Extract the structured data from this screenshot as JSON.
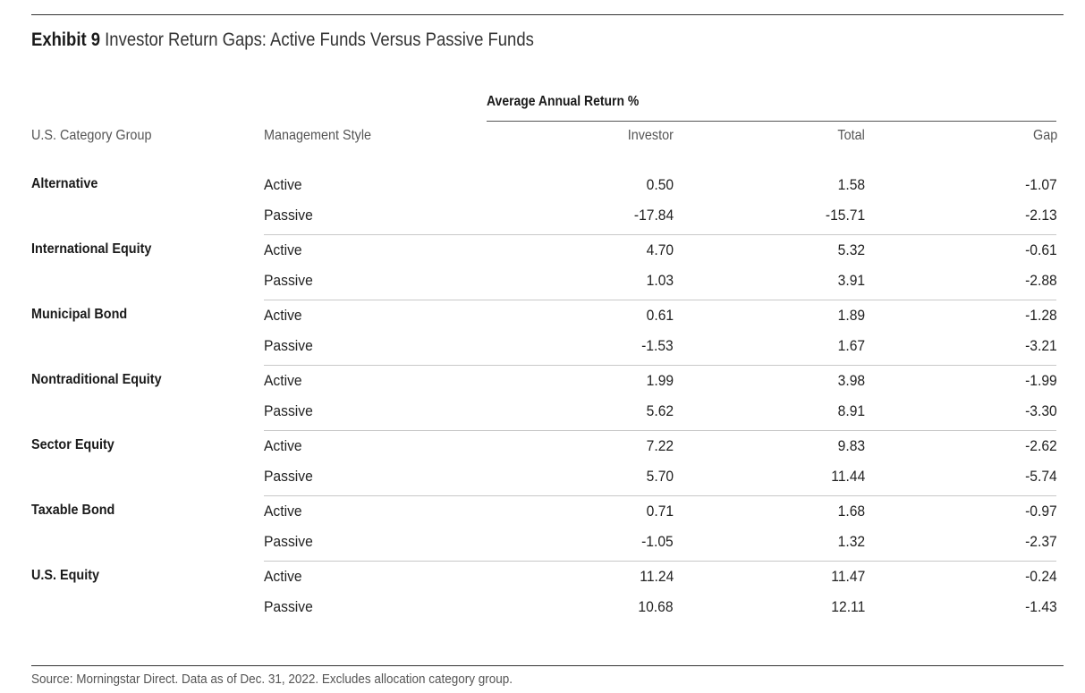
{
  "exhibit": {
    "label": "Exhibit 9",
    "title": "Investor Return Gaps: Active Funds Versus Passive Funds"
  },
  "table": {
    "group_header": "Average Annual Return %",
    "columns": {
      "category": "U.S. Category Group",
      "style": "Management Style",
      "investor": "Investor",
      "total": "Total",
      "gap": "Gap"
    }
  },
  "chart_data": {
    "type": "table",
    "title": "Investor Return Gaps: Active Funds Versus Passive Funds",
    "columns": [
      "U.S. Category Group",
      "Management Style",
      "Investor",
      "Total",
      "Gap"
    ],
    "groups": [
      {
        "category": "Alternative",
        "rows": [
          {
            "style": "Active",
            "investor": "0.50",
            "total": "1.58",
            "gap": "-1.07"
          },
          {
            "style": "Passive",
            "investor": "-17.84",
            "total": "-15.71",
            "gap": "-2.13"
          }
        ]
      },
      {
        "category": "International Equity",
        "rows": [
          {
            "style": "Active",
            "investor": "4.70",
            "total": "5.32",
            "gap": "-0.61"
          },
          {
            "style": "Passive",
            "investor": "1.03",
            "total": "3.91",
            "gap": "-2.88"
          }
        ]
      },
      {
        "category": "Municipal Bond",
        "rows": [
          {
            "style": "Active",
            "investor": "0.61",
            "total": "1.89",
            "gap": "-1.28"
          },
          {
            "style": "Passive",
            "investor": "-1.53",
            "total": "1.67",
            "gap": "-3.21"
          }
        ]
      },
      {
        "category": "Nontraditional Equity",
        "rows": [
          {
            "style": "Active",
            "investor": "1.99",
            "total": "3.98",
            "gap": "-1.99"
          },
          {
            "style": "Passive",
            "investor": "5.62",
            "total": "8.91",
            "gap": "-3.30"
          }
        ]
      },
      {
        "category": "Sector Equity",
        "rows": [
          {
            "style": "Active",
            "investor": "7.22",
            "total": "9.83",
            "gap": "-2.62"
          },
          {
            "style": "Passive",
            "investor": "5.70",
            "total": "11.44",
            "gap": "-5.74"
          }
        ]
      },
      {
        "category": "Taxable Bond",
        "rows": [
          {
            "style": "Active",
            "investor": "0.71",
            "total": "1.68",
            "gap": "-0.97"
          },
          {
            "style": "Passive",
            "investor": "-1.05",
            "total": "1.32",
            "gap": "-2.37"
          }
        ]
      },
      {
        "category": "U.S. Equity",
        "rows": [
          {
            "style": "Active",
            "investor": "11.24",
            "total": "11.47",
            "gap": "-0.24"
          },
          {
            "style": "Passive",
            "investor": "10.68",
            "total": "12.11",
            "gap": "-1.43"
          }
        ]
      }
    ]
  },
  "footer": {
    "source": "Source: Morningstar Direct. Data as of Dec. 31, 2022. Excludes allocation category group."
  }
}
